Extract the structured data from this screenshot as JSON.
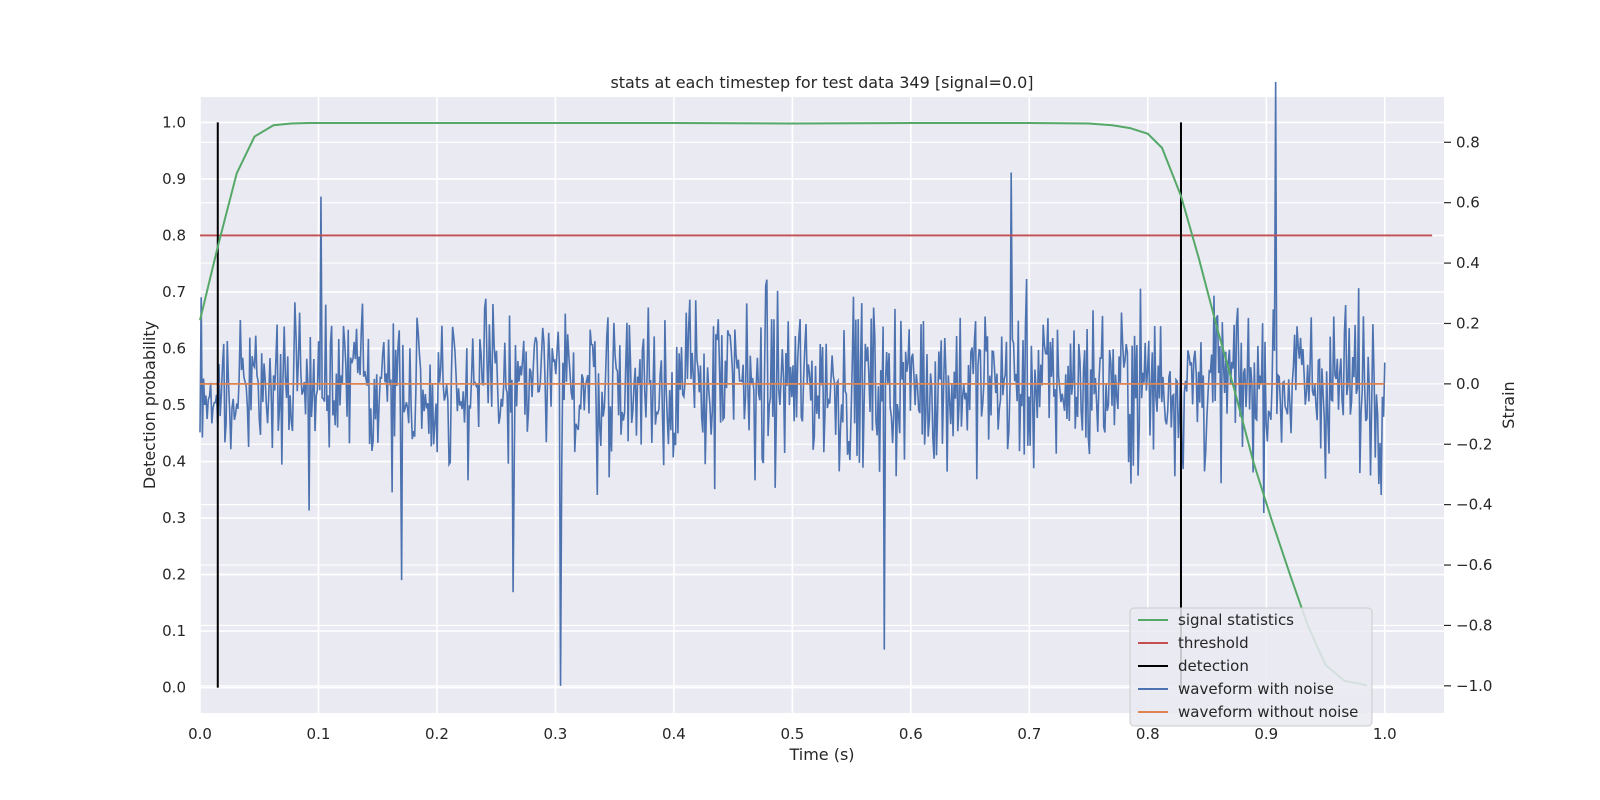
{
  "chart_data": {
    "type": "line",
    "title": "stats at each timestep for test data 349 [signal=0.0]",
    "xlabel": "Time (s)",
    "ylabel_left": "Detection probability",
    "ylabel_right": "Strain",
    "xlim": [
      0.0,
      1.05
    ],
    "ylim_left": [
      -0.045,
      1.045
    ],
    "ylim_right": [
      -1.09,
      0.95
    ],
    "xticks": [
      "0.0",
      "0.1",
      "0.2",
      "0.3",
      "0.4",
      "0.5",
      "0.6",
      "0.7",
      "0.8",
      "0.9",
      "1.0"
    ],
    "xtick_values": [
      0.0,
      0.1,
      0.2,
      0.3,
      0.4,
      0.5,
      0.6,
      0.7,
      0.8,
      0.9,
      1.0
    ],
    "yticks_left": [
      "0.0",
      "0.1",
      "0.2",
      "0.3",
      "0.4",
      "0.5",
      "0.6",
      "0.7",
      "0.8",
      "0.9",
      "1.0"
    ],
    "ytick_values_left": [
      0.0,
      0.1,
      0.2,
      0.3,
      0.4,
      0.5,
      0.6,
      0.7,
      0.8,
      0.9,
      1.0
    ],
    "yticks_right": [
      "0.8",
      "0.6",
      "0.4",
      "0.2",
      "0.0",
      "−0.2",
      "−0.4",
      "−0.6",
      "−0.8",
      "−1.0"
    ],
    "ytick_values_right": [
      0.8,
      0.6,
      0.4,
      0.2,
      0.0,
      -0.2,
      -0.4,
      -0.6,
      -0.8,
      -1.0
    ],
    "grid": true,
    "legend_position": "lower-right",
    "colors": {
      "signal_statistics": "#55a868",
      "threshold": "#c44e52",
      "detection": "#000000",
      "waveform_with_noise": "#4c72b0",
      "waveform_without_noise": "#dd8452",
      "plot_background": "#eaeaf2",
      "grid": "#ffffff"
    },
    "series": [
      {
        "name": "signal statistics",
        "axis": "left",
        "x": [
          0.0,
          0.015,
          0.031,
          0.046,
          0.062,
          0.077,
          0.092,
          0.2,
          0.4,
          0.5,
          0.6,
          0.7,
          0.75,
          0.77,
          0.785,
          0.8,
          0.812,
          0.828,
          0.843,
          0.858,
          0.874,
          0.889,
          0.904,
          0.92,
          0.935,
          0.95,
          0.966,
          0.985
        ],
        "y": [
          0.65,
          0.78,
          0.91,
          0.975,
          0.995,
          0.998,
          0.999,
          0.999,
          0.999,
          0.998,
          0.999,
          0.999,
          0.998,
          0.995,
          0.99,
          0.98,
          0.955,
          0.87,
          0.76,
          0.64,
          0.52,
          0.4,
          0.3,
          0.2,
          0.11,
          0.04,
          0.012,
          0.004
        ]
      },
      {
        "name": "threshold",
        "axis": "left",
        "x": [
          0.0,
          1.04
        ],
        "y": [
          0.8,
          0.8
        ]
      },
      {
        "name": "detection",
        "axis": "left",
        "x": [
          0.015,
          0.828
        ],
        "y_range": [
          0.0,
          1.0
        ]
      },
      {
        "name": "waveform with noise",
        "axis": "right",
        "n_points": 1000,
        "x_range": [
          0.0,
          1.0
        ],
        "strain_range": [
          -1.0,
          1.0
        ],
        "approx_std": 0.27,
        "notable_points": [
          {
            "x": 0.304,
            "y": -1.0
          },
          {
            "x": 0.908,
            "y": 1.0
          },
          {
            "x": 0.578,
            "y": -0.88
          },
          {
            "x": 0.17,
            "y": -0.65
          },
          {
            "x": 0.264,
            "y": -0.69
          },
          {
            "x": 0.685,
            "y": 0.7
          },
          {
            "x": 0.102,
            "y": 0.62
          }
        ]
      },
      {
        "name": "waveform without noise",
        "axis": "right",
        "x": [
          0.0,
          1.0
        ],
        "y": [
          0.0,
          0.0
        ]
      }
    ]
  }
}
